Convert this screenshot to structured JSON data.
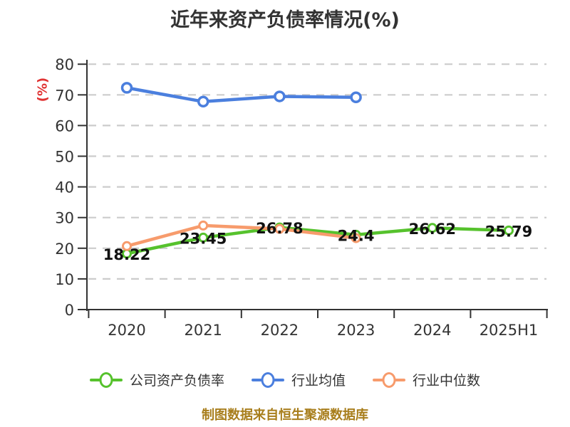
{
  "chart_data": {
    "type": "line",
    "title": "近年来资产负债率情况(%)",
    "ylabel": "(%)",
    "ylabel_color": "#E03232",
    "categories": [
      "2020",
      "2021",
      "2022",
      "2023",
      "2024",
      "2025H1"
    ],
    "series": [
      {
        "name": "公司资产负债率",
        "color": "#56C22D",
        "values": [
          18.22,
          23.45,
          26.78,
          24.4,
          26.62,
          25.79
        ],
        "point_labels": [
          "18.22",
          "23.45",
          "26.78",
          "24.4",
          "26.62",
          "25.79"
        ]
      },
      {
        "name": "行业均值",
        "color": "#4B7FDE",
        "values": [
          72.3,
          67.8,
          69.5,
          69.2,
          null,
          null
        ]
      },
      {
        "name": "行业中位数",
        "color": "#F79B6C",
        "values": [
          20.7,
          27.4,
          26.3,
          23.3,
          null,
          null
        ]
      }
    ],
    "ylim": [
      0,
      80
    ],
    "yticks": [
      0,
      10,
      20,
      30,
      40,
      50,
      60,
      70,
      80
    ],
    "grid": "dashed-horizontal",
    "legend_position": "bottom",
    "colors": {
      "axis": "#333333",
      "grid": "#CCCCCC",
      "label": "#111111"
    }
  },
  "footer": {
    "text": "制图数据来自恒生聚源数据库",
    "color": "#A87E1C"
  }
}
